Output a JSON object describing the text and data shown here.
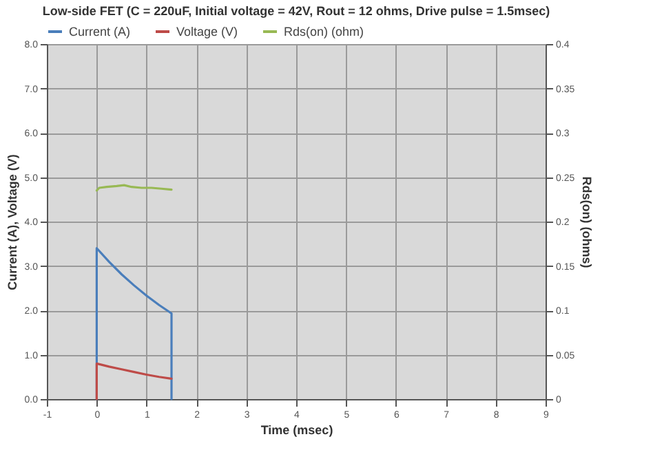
{
  "chart_data": {
    "type": "line",
    "title": "Low-side FET (C = 220uF, Initial voltage = 42V, Rout = 12 ohms, Drive pulse = 1.5msec)",
    "xlabel": "Time (msec)",
    "ylabel": "Current (A), Voltage (V)",
    "y2label": "Rds(on) (ohms)",
    "series": [
      {
        "name": "Current (A)",
        "color": "#4a7ebb",
        "x": [
          0,
          0,
          0.25,
          0.5,
          0.75,
          1.0,
          1.25,
          1.5,
          1.5
        ],
        "values": [
          0,
          3.4,
          3.09,
          2.81,
          2.56,
          2.33,
          2.12,
          1.93,
          0
        ]
      },
      {
        "name": "Voltage (V)",
        "color": "#be4b48",
        "x": [
          0,
          0,
          0.25,
          0.5,
          0.75,
          1.0,
          1.25,
          1.5
        ],
        "values": [
          0,
          0.8,
          0.73,
          0.67,
          0.61,
          0.55,
          0.5,
          0.46
        ]
      },
      {
        "name": "Rds(on) (ohm)",
        "color": "#98b954",
        "axis": "y2",
        "x": [
          0,
          0.05,
          0.2,
          0.4,
          0.55,
          0.7,
          0.9,
          1.1,
          1.3,
          1.5
        ],
        "values": [
          0.235,
          0.238,
          0.239,
          0.24,
          0.241,
          0.239,
          0.238,
          0.238,
          0.237,
          0.236
        ]
      }
    ],
    "xlim": [
      -1,
      9
    ],
    "xticks": [
      -1,
      0,
      1,
      2,
      3,
      4,
      5,
      6,
      7,
      8,
      9
    ],
    "ylim": [
      0,
      8
    ],
    "yticks": [
      {
        "value": 0,
        "label": "0.0"
      },
      {
        "value": 1,
        "label": "1.0"
      },
      {
        "value": 2,
        "label": "2.0"
      },
      {
        "value": 3,
        "label": "3.0"
      },
      {
        "value": 4,
        "label": "4.0"
      },
      {
        "value": 5,
        "label": "5.0"
      },
      {
        "value": 6,
        "label": "6.0"
      },
      {
        "value": 7,
        "label": "7.0"
      },
      {
        "value": 8,
        "label": "8.0"
      }
    ],
    "y2lim": [
      0,
      0.4
    ],
    "y2ticks": [
      0,
      0.05,
      0.1,
      0.15,
      0.2,
      0.25,
      0.3,
      0.35,
      0.4
    ],
    "grid": true,
    "legend": "top",
    "marker": "none",
    "line_style": "solid"
  }
}
